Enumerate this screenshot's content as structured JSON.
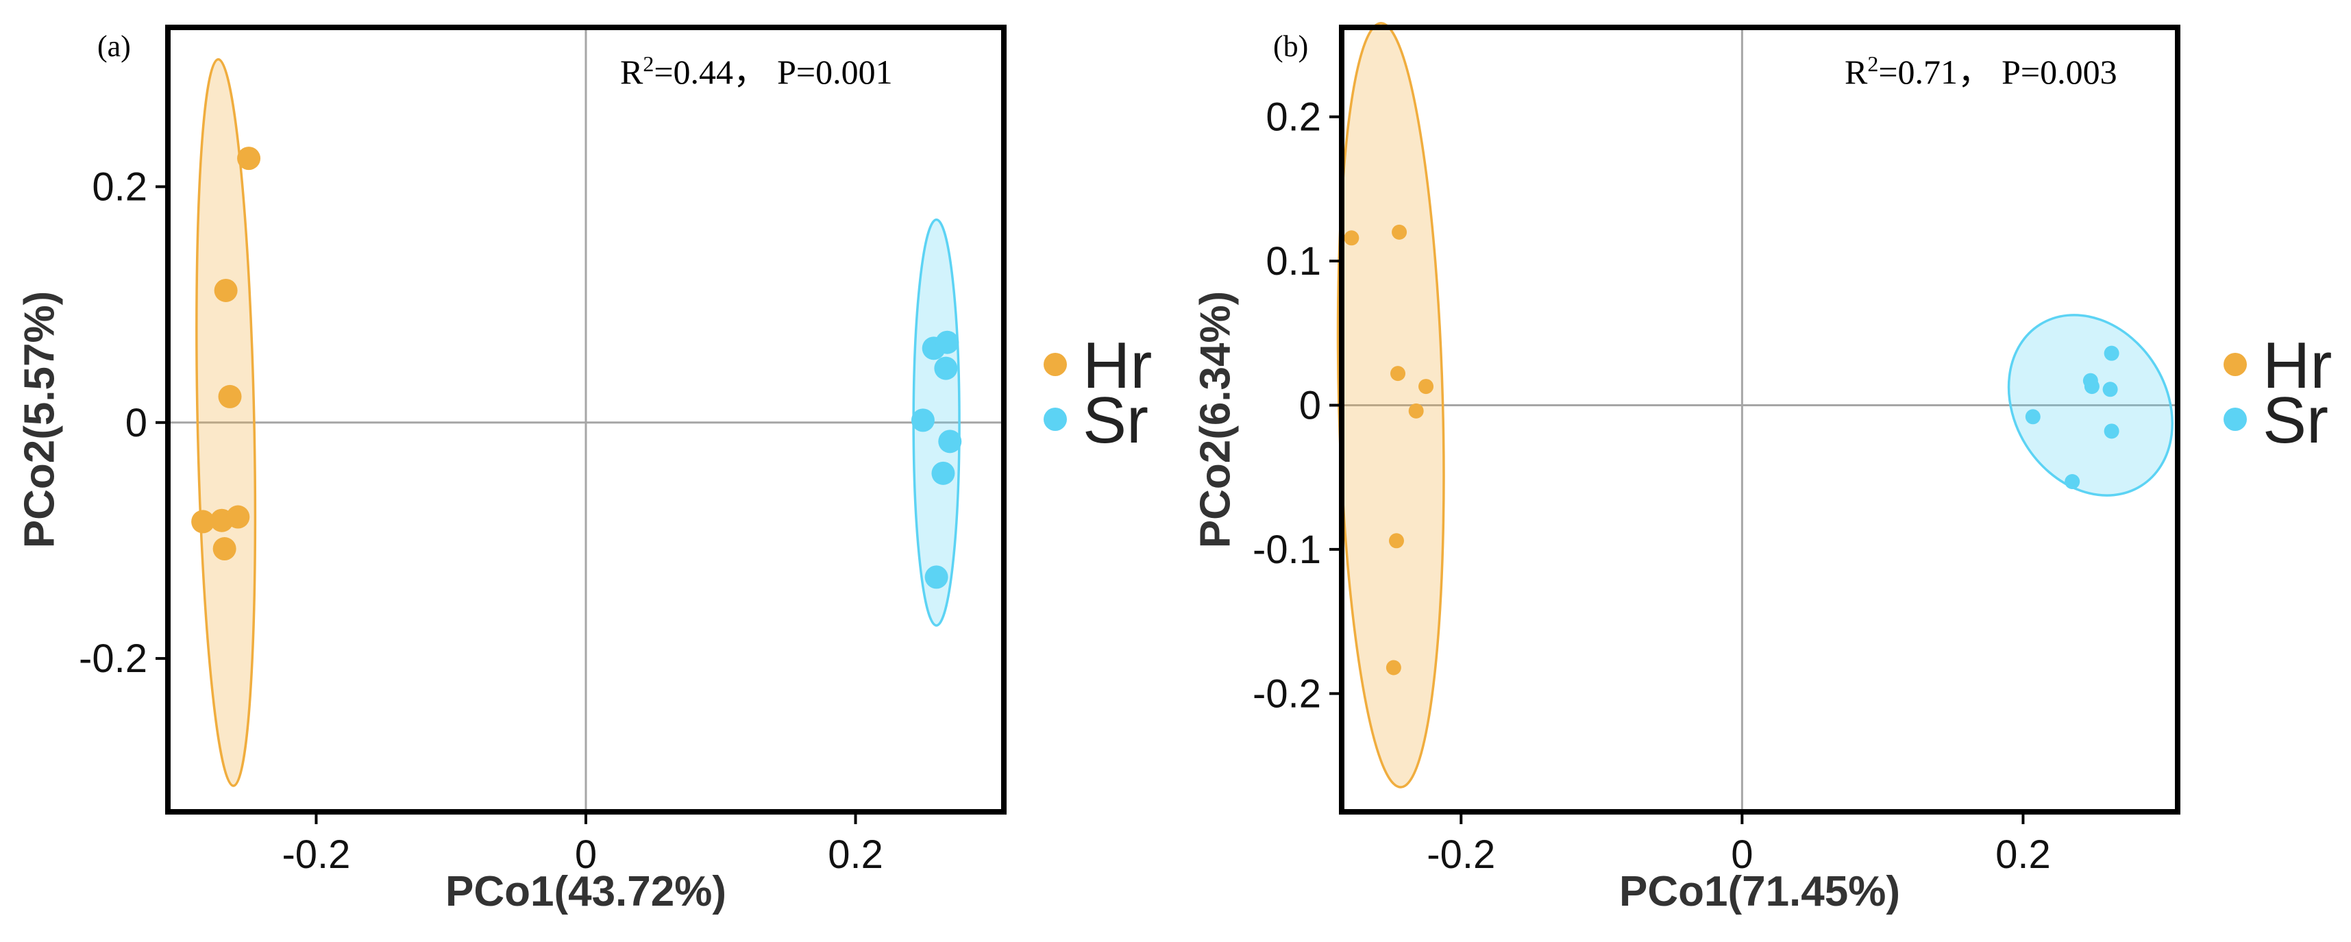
{
  "chart_data": [
    {
      "type": "scatter",
      "panel_label": "(a)",
      "xlabel": "PCo1(43.72%)",
      "ylabel": "PCo2(5.57%)",
      "xlim": [
        -0.31,
        0.31
      ],
      "ylim": [
        -0.33,
        0.335
      ],
      "xticks": [
        -0.2,
        0,
        0.2
      ],
      "xtick_labels": [
        "-0.2",
        "0",
        "0.2"
      ],
      "yticks": [
        -0.2,
        0,
        0.2
      ],
      "ytick_labels": [
        "-0.2",
        "0",
        "0.2"
      ],
      "annotation": {
        "r_prefix": "R",
        "r_sup": "2",
        "r_value": "=0.44，",
        "p_text": "P=0.001"
      },
      "series": [
        {
          "name": "Hr",
          "color": "#F0AD3E",
          "points": [
            [
              -0.25,
              0.224
            ],
            [
              -0.267,
              0.112
            ],
            [
              -0.264,
              0.022
            ],
            [
              -0.284,
              -0.084
            ],
            [
              -0.27,
              -0.083
            ],
            [
              -0.258,
              -0.08
            ],
            [
              -0.268,
              -0.107
            ]
          ],
          "ellipse": {
            "center": [
              -0.267,
              0.0
            ],
            "semi_minor_x": 0.021,
            "semi_major_y": 0.308,
            "angle_deg": -1.2
          }
        },
        {
          "name": "Sr",
          "color": "#5CD3F4",
          "points": [
            [
              0.258,
              0.063
            ],
            [
              0.268,
              0.068
            ],
            [
              0.267,
              0.046
            ],
            [
              0.25,
              0.002
            ],
            [
              0.27,
              -0.016
            ],
            [
              0.265,
              -0.043
            ],
            [
              0.26,
              -0.131
            ]
          ],
          "ellipse": {
            "center": [
              0.26,
              0.0
            ],
            "semi_minor_x": 0.017,
            "semi_major_y": 0.172,
            "angle_deg": 0
          }
        }
      ]
    },
    {
      "type": "scatter",
      "panel_label": "(b)",
      "xlabel": "PCo1(71.45%)",
      "ylabel": "PCo2(6.34%)",
      "xlim": [
        -0.285,
        0.31
      ],
      "ylim": [
        -0.282,
        0.262
      ],
      "xticks": [
        -0.2,
        0,
        0.2
      ],
      "xtick_labels": [
        "-0.2",
        "0",
        "0.2"
      ],
      "yticks": [
        -0.2,
        -0.1,
        0,
        0.1,
        0.2
      ],
      "ytick_labels": [
        "-0.2",
        "-0.1",
        "0",
        "0.1",
        "0.2"
      ],
      "annotation": {
        "r_prefix": "R",
        "r_sup": "2",
        "r_value": "=0.71，",
        "p_text": "P=0.003"
      },
      "series": [
        {
          "name": "Hr",
          "color": "#F0AD3E",
          "points": [
            [
              -0.278,
              0.116
            ],
            [
              -0.244,
              0.12
            ],
            [
              -0.245,
              0.022
            ],
            [
              -0.225,
              0.013
            ],
            [
              -0.232,
              -0.004
            ],
            [
              -0.246,
              -0.094
            ],
            [
              -0.248,
              -0.182
            ]
          ],
          "ellipse": {
            "center": [
              -0.25,
              0.0
            ],
            "semi_minor_x": 0.037,
            "semi_major_y": 0.265,
            "angle_deg": -1.5
          }
        },
        {
          "name": "Sr",
          "color": "#5CD3F4",
          "points": [
            [
              0.207,
              -0.008
            ],
            [
              0.248,
              0.017
            ],
            [
              0.249,
              0.013
            ],
            [
              0.262,
              0.011
            ],
            [
              0.263,
              0.036
            ],
            [
              0.263,
              -0.018
            ],
            [
              0.235,
              -0.053
            ]
          ],
          "ellipse": {
            "center": [
              0.248,
              0.0
            ],
            "semi_minor_x": 0.054,
            "semi_major_y": 0.066,
            "angle_deg": -32
          }
        }
      ]
    }
  ]
}
